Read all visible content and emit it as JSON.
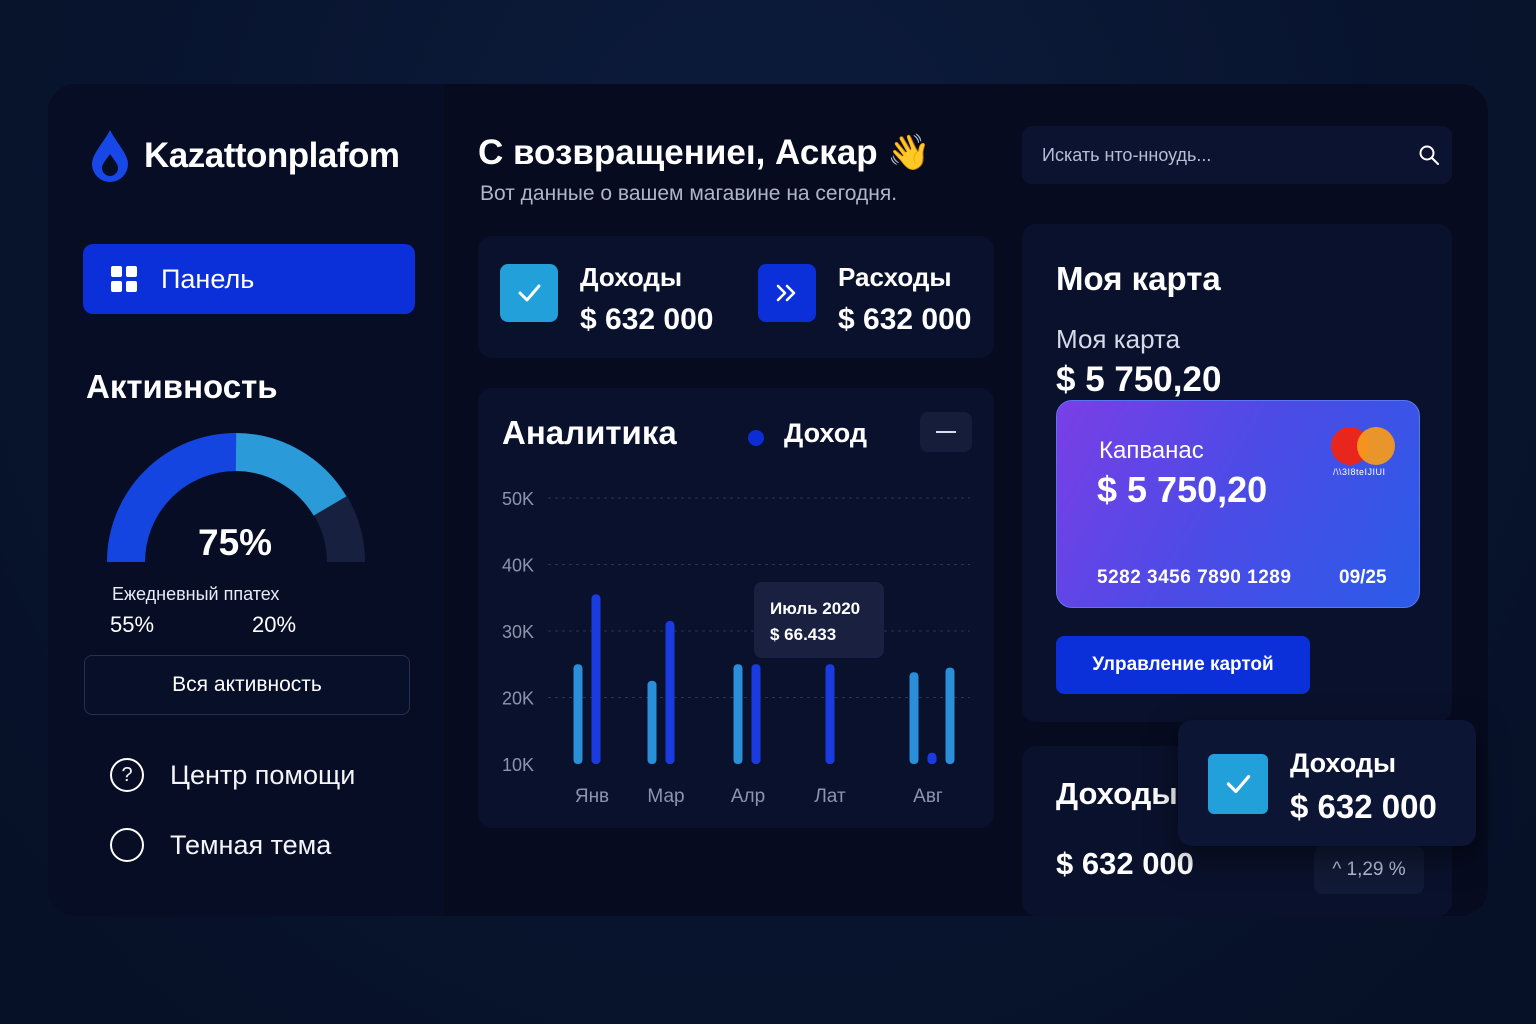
{
  "brand": {
    "name": "Kazattonplafom",
    "icon": "drop-icon"
  },
  "sidebar": {
    "nav_active": {
      "label": "Панель",
      "icon": "grid-icon"
    },
    "activity": {
      "title": "Активность",
      "gauge_value": "75%",
      "gauge_fraction": 0.75,
      "caption": "Ежедневный ппатех",
      "stat_left": "55%",
      "stat_right": "20%",
      "button": "Вся активность"
    },
    "menu": [
      {
        "label": "Центр помощи",
        "icon": "help-icon"
      },
      {
        "label": "Темная тема",
        "icon": "circle-toggle-icon"
      }
    ]
  },
  "header": {
    "greeting": "С возвращениeı, Аскар 👋",
    "subtitle": "Вот данные о вашем магавине на сегодня."
  },
  "search": {
    "placeholder": "Искать нто-нноудь..."
  },
  "kpis": [
    {
      "label": "Доходы",
      "value": "$ 632 000",
      "icon": "check-icon",
      "color": "#21a0d9"
    },
    {
      "label": "Расходы",
      "value": "$ 632 000",
      "icon": "double-chevron-right-icon",
      "color": "#0b2fd8"
    }
  ],
  "analytics": {
    "title": "Аналитика",
    "legend": "Доход",
    "tooltip_title": "Июль 2020",
    "tooltip_value": "$ 66.433"
  },
  "chart_data": {
    "type": "bar",
    "y_ticks": [
      "50K",
      "40K",
      "30K",
      "20K",
      "10K"
    ],
    "ylim": [
      10000,
      50000
    ],
    "x_labels": [
      "Янв",
      "Мар",
      "Алр",
      "Лат",
      "Авг"
    ],
    "grid": true,
    "series": [
      {
        "name": "Доход",
        "color": "#0c2cd6"
      }
    ],
    "bars": [
      {
        "group": "Янв",
        "value": 25000,
        "color": "#2a8fd8"
      },
      {
        "group": "Янв",
        "value": 35500,
        "color": "#1a3be0"
      },
      {
        "group": "Мар",
        "value": 22500,
        "color": "#2a8fd8"
      },
      {
        "group": "Мар",
        "value": 31500,
        "color": "#1a3be0"
      },
      {
        "group": "Алр",
        "value": 25000,
        "color": "#2a8fd8"
      },
      {
        "group": "Алр",
        "value": 25000,
        "color": "#1a3be0"
      },
      {
        "group": "Лат",
        "value": 25000,
        "color": "#1a3be0"
      },
      {
        "group": "Авг",
        "value": 23800,
        "color": "#2a8fd8"
      },
      {
        "group": "Авг",
        "value": 11700,
        "color": "#1a3be0"
      },
      {
        "group": "Авг",
        "value": 24500,
        "color": "#2a8fd8"
      }
    ]
  },
  "my_card": {
    "title": "Моя карта",
    "subtitle": "Моя карта",
    "balance": "$ 5 750,20",
    "card": {
      "holder": "Капванас",
      "amount": "$ 5 750,20",
      "number": "5282 3456 7890 1289",
      "expiry": "09/25",
      "brand": "/\\\\3I8teIJIUI"
    },
    "manage_button": "Улравление картой"
  },
  "income": {
    "title": "Доходы",
    "value": "$ 632 000",
    "trend": "^ 1,29 %"
  },
  "floating_card": {
    "label": "Доходы",
    "value": "$ 632 000",
    "icon": "check-icon"
  }
}
